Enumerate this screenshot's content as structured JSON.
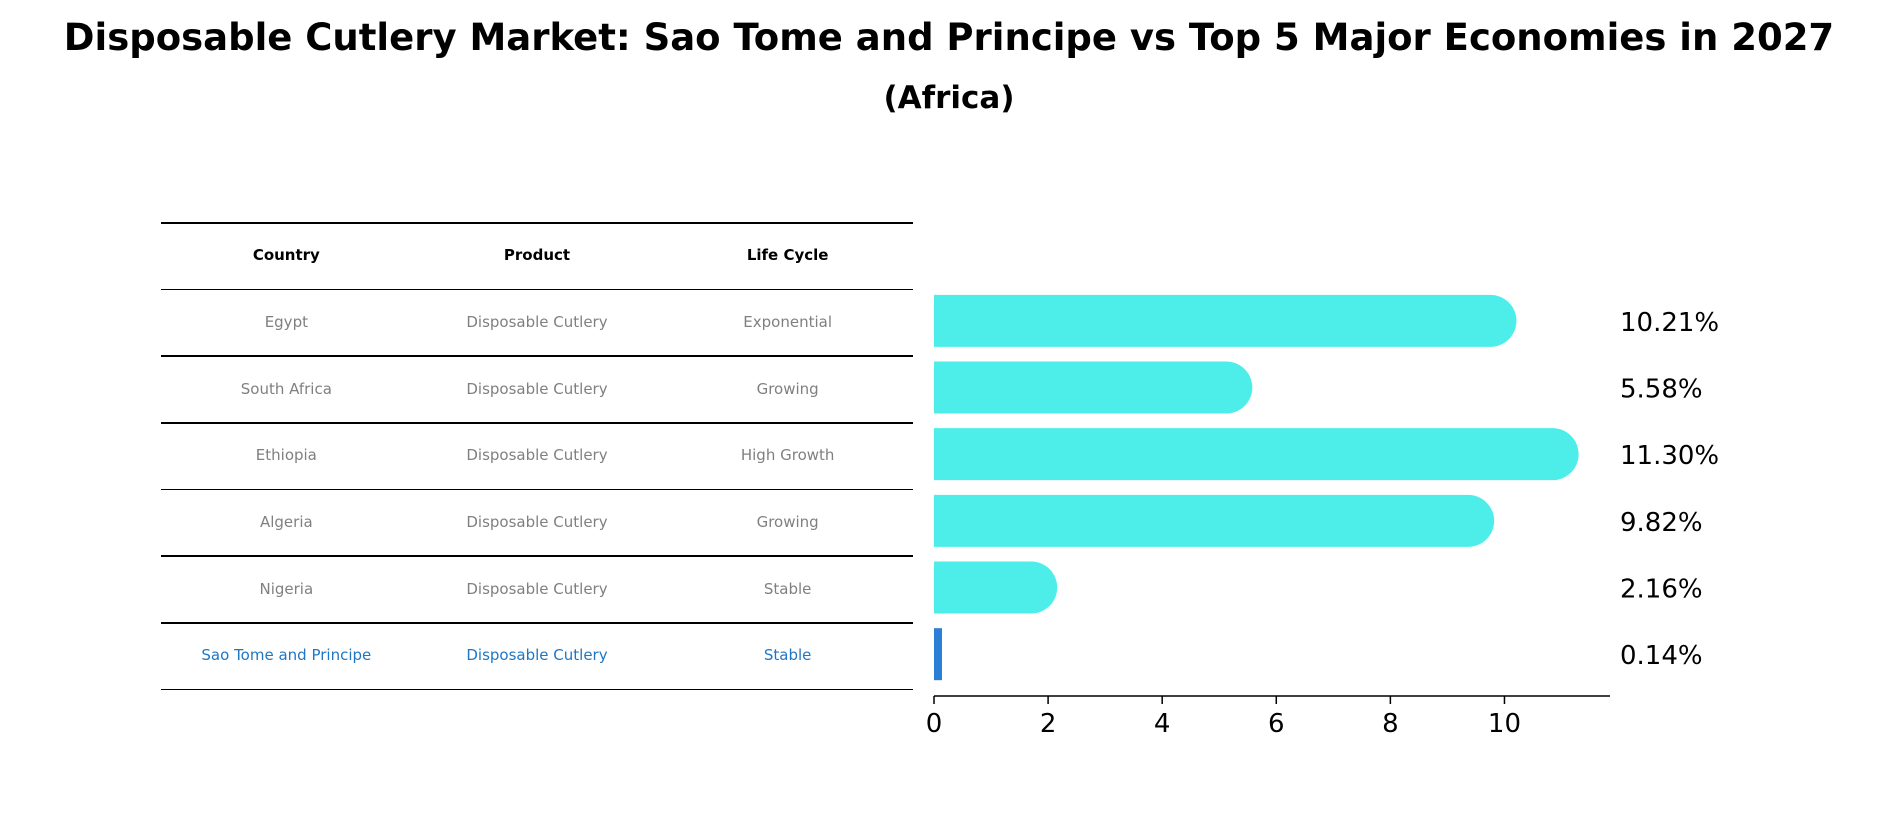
{
  "title": "Disposable Cutlery Market: Sao Tome and Principe vs Top 5 Major Economies in 2027",
  "subtitle": "(Africa)",
  "table": {
    "headers": [
      "Country",
      "Product",
      "Life Cycle"
    ],
    "rows": [
      {
        "country": "Egypt",
        "product": "Disposable Cutlery",
        "life_cycle": "Exponential"
      },
      {
        "country": "South Africa",
        "product": "Disposable Cutlery",
        "life_cycle": "Growing"
      },
      {
        "country": "Ethiopia",
        "product": "Disposable Cutlery",
        "life_cycle": "High Growth"
      },
      {
        "country": "Algeria",
        "product": "Disposable Cutlery",
        "life_cycle": "Growing"
      },
      {
        "country": "Nigeria",
        "product": "Disposable Cutlery",
        "life_cycle": "Stable"
      },
      {
        "country": "Sao Tome and Principe",
        "product": "Disposable Cutlery",
        "life_cycle": "Stable"
      }
    ]
  },
  "colors": {
    "bar": "#4deeea",
    "highlight_bar": "#2a7fd4",
    "highlight_text": "#1f77c4",
    "muted_text": "#808080"
  },
  "chart_data": {
    "type": "bar",
    "orientation": "horizontal",
    "categories": [
      "Egypt",
      "South Africa",
      "Ethiopia",
      "Algeria",
      "Nigeria",
      "Sao Tome and Principe"
    ],
    "values": [
      10.21,
      5.58,
      11.3,
      9.82,
      2.16,
      0.14
    ],
    "data_labels": [
      "10.21%",
      "5.58%",
      "11.30%",
      "9.82%",
      "2.16%",
      "0.14%"
    ],
    "xlim": [
      0,
      11.85
    ],
    "xticks": [
      0,
      2,
      4,
      6,
      8,
      10
    ],
    "grid": false,
    "highlight_category": "Sao Tome and Principe"
  }
}
